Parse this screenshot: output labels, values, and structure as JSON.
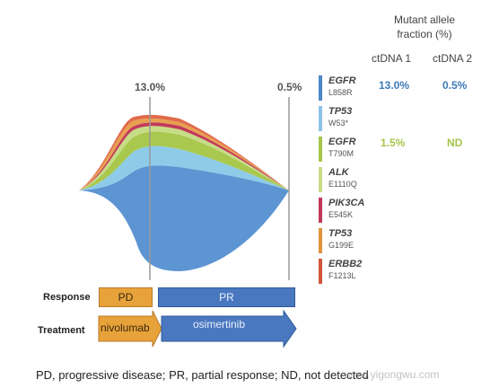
{
  "header": {
    "mutant_allele_fraction": "Mutant allele\nfraction (%)",
    "col1": "ctDNA 1",
    "col2": "ctDNA 2"
  },
  "timepoints": {
    "t1": "13.0%",
    "t2": "0.5%"
  },
  "genes": [
    {
      "name": "EGFR",
      "mutation": "L858R",
      "color": "#4a86c8",
      "ctdna1": "13.0%",
      "ctdna2": "0.5%",
      "value_color": "#3d7ab8"
    },
    {
      "name": "TP53",
      "mutation": "W53*",
      "color": "#8dc3e8",
      "ctdna1": "",
      "ctdna2": "",
      "value_color": ""
    },
    {
      "name": "EGFR",
      "mutation": "T790M",
      "color": "#a6c54a",
      "ctdna1": "1.5%",
      "ctdna2": "ND",
      "value_color": "#a6c54a"
    },
    {
      "name": "ALK",
      "mutation": "E1110Q",
      "color": "#c9dc88",
      "ctdna1": "",
      "ctdna2": "",
      "value_color": ""
    },
    {
      "name": "PIK3CA",
      "mutation": "E545K",
      "color": "#c23a5a",
      "ctdna1": "",
      "ctdna2": "",
      "value_color": ""
    },
    {
      "name": "TP53",
      "mutation": "G199E",
      "color": "#e0923a",
      "ctdna1": "",
      "ctdna2": "",
      "value_color": ""
    },
    {
      "name": "ERBB2",
      "mutation": "F1213L",
      "color": "#d0553a",
      "ctdna1": "",
      "ctdna2": "",
      "value_color": ""
    }
  ],
  "response": {
    "label": "Response",
    "pd": "PD",
    "pr": "PR"
  },
  "treatment": {
    "label": "Treatment",
    "drug1": "nivolumab",
    "drug2": "osimertinib"
  },
  "caption": "PD, progressive disease; PR, partial response; ND, not detected",
  "watermark": "www.yigongwu.com",
  "colors": {
    "pd_fill": "#e8a23a",
    "pr_fill": "#4a78c0",
    "axis": "#999999"
  }
}
